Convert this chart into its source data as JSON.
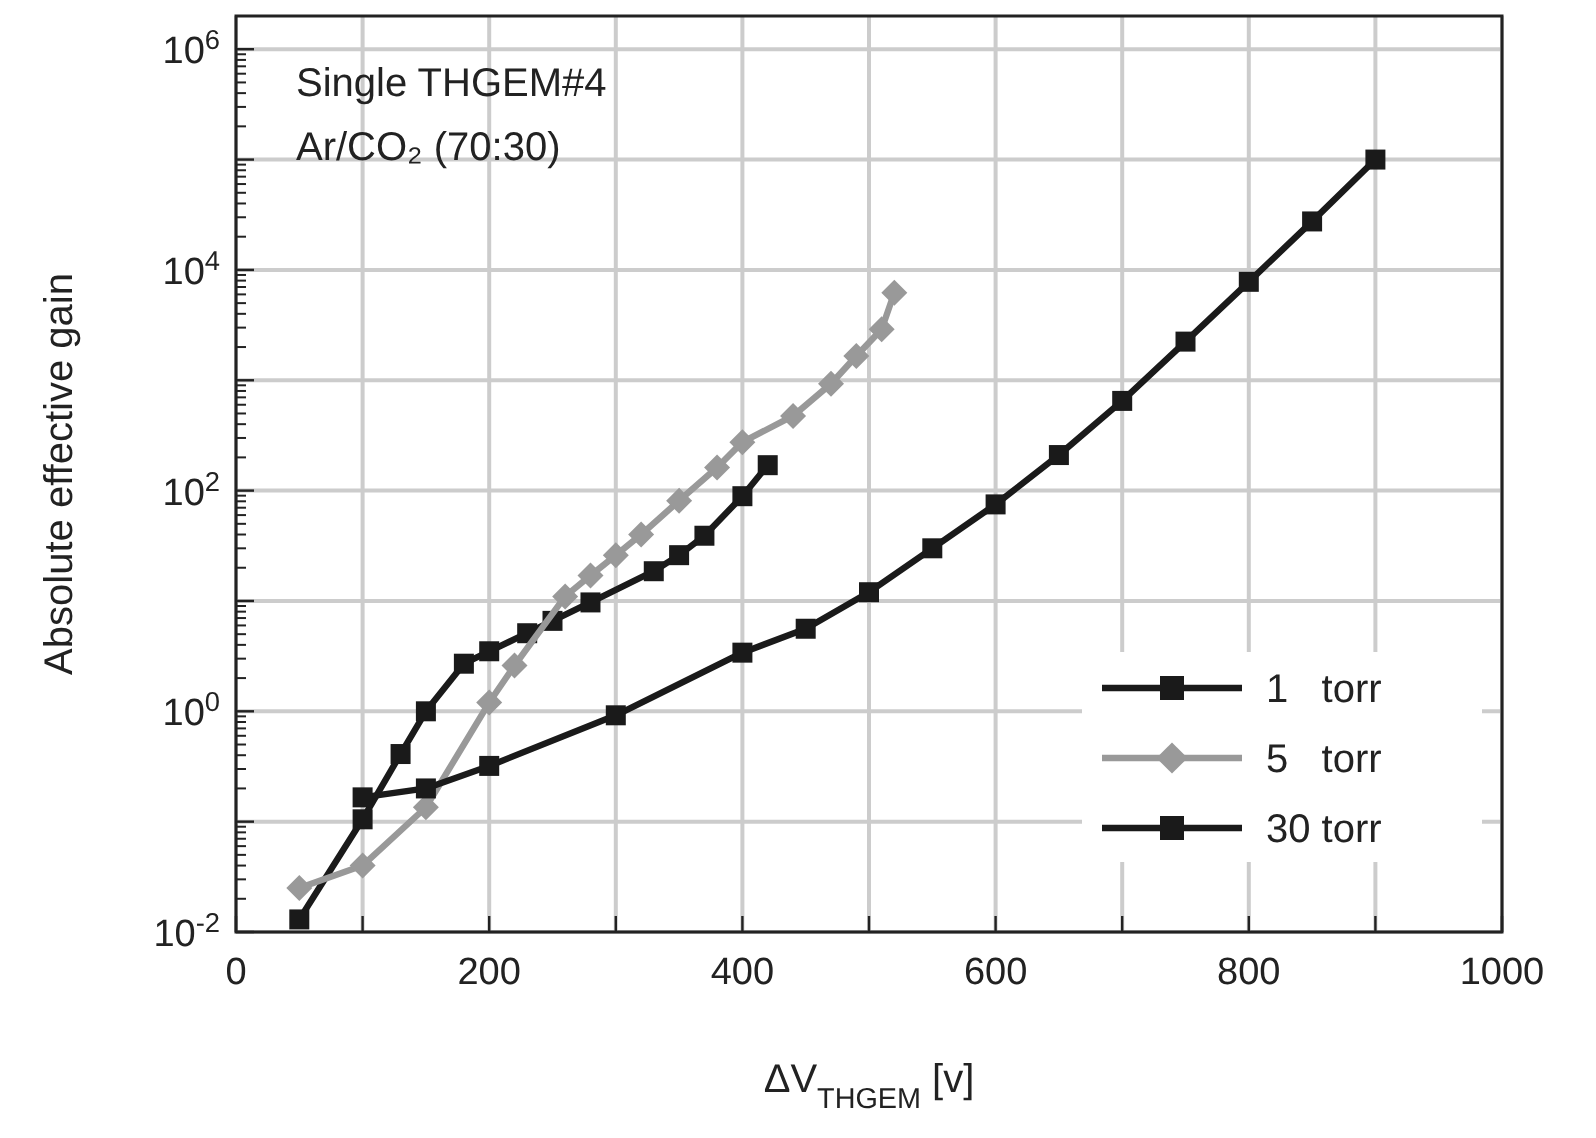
{
  "chart_data": {
    "type": "line",
    "xlabel": "ΔV$_{THGEM}$ [v]",
    "ylabel": "Absolute effective gain",
    "annotations": [
      "Single THGEM#4",
      "Ar/CO₂ (70:30)"
    ],
    "xlim": [
      0,
      1000
    ],
    "ylim": [
      0.01,
      2000000
    ],
    "log": "y",
    "grid": true,
    "legend": "bottom right",
    "line_style": "solid",
    "xticks": [
      0,
      {
        "value": 100,
        "label": null
      },
      200,
      {
        "value": 300,
        "label": null
      },
      400,
      {
        "value": 500,
        "label": null
      },
      600,
      {
        "value": 700,
        "label": null
      },
      800,
      {
        "value": 900,
        "label": null
      },
      1000
    ],
    "yticks": [
      {
        "value": 0.01,
        "label": "10$^{-2}$"
      },
      {
        "value": 0.1,
        "label": null
      },
      {
        "value": 1,
        "label": "10$^{0}$"
      },
      {
        "value": 10,
        "label": null
      },
      {
        "value": 100,
        "label": "10$^{2}$"
      },
      {
        "value": 1000,
        "label": null
      },
      {
        "value": 10000,
        "label": "10$^{4}$"
      },
      {
        "value": 100000,
        "label": null
      },
      {
        "value": 1000000,
        "label": "10$^{6}$"
      }
    ],
    "series": [
      {
        "name": "1   torr",
        "color": "#1a1a1a",
        "marker": "square",
        "x": [
          50,
          100,
          130,
          150,
          180,
          200,
          230,
          250,
          280,
          330,
          350,
          370,
          400,
          420
        ],
        "values": [
          0.013,
          0.105,
          0.41,
          1.0,
          2.7,
          3.5,
          5.1,
          6.6,
          9.7,
          18.6,
          26,
          39,
          89,
          170
        ]
      },
      {
        "name": "5   torr",
        "color": "#999999",
        "marker": "diamond",
        "x": [
          50,
          100,
          150,
          200,
          220,
          260,
          280,
          300,
          320,
          350,
          380,
          400,
          440,
          470,
          490,
          510,
          520
        ],
        "values": [
          0.025,
          0.04,
          0.135,
          1.2,
          2.6,
          11,
          17,
          26,
          40,
          81,
          162,
          275,
          475,
          930,
          1660,
          2900,
          6200
        ]
      },
      {
        "name": "30 torr",
        "color": "#1a1a1a",
        "marker": "square",
        "x": [
          100,
          150,
          200,
          300,
          400,
          450,
          500,
          550,
          600,
          650,
          700,
          750,
          800,
          850,
          900
        ],
        "values": [
          0.166,
          0.2,
          0.32,
          0.92,
          3.4,
          5.6,
          12,
          30,
          75,
          210,
          650,
          2240,
          7800,
          27500,
          100000
        ]
      }
    ]
  }
}
